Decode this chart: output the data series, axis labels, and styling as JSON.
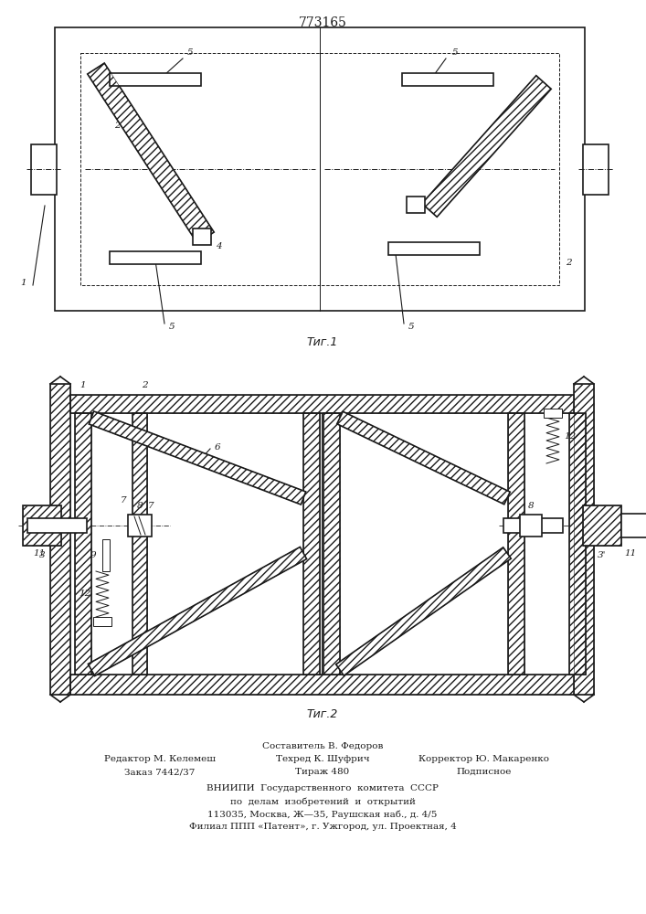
{
  "title": "773165",
  "fig1_caption": "Τиг.1",
  "fig2_caption": "Τиг.2",
  "footer_line0": "Составитель В. Федоров",
  "footer_line1a": "Редактор М. Келемеш",
  "footer_line1b": "Техред К. Шуфрич",
  "footer_line1c": "Корректор Ю. Макаренко",
  "footer_line2a": "Заказ 7442/37",
  "footer_line2b": "Тираж 480",
  "footer_line2c": "Подписное",
  "footer_line3": "ВНИИПИ  Государственного  комитета  СССР",
  "footer_line4": "по  делам  изобретений  и  открытий",
  "footer_line5": "113035, Москва, Ж—35, Раушская наб., д. 4/5",
  "footer_line6": "Филиал ППП «Патент», г. Ужгород, ул. Проектная, 4",
  "bg_color": "#ffffff",
  "line_color": "#1a1a1a"
}
